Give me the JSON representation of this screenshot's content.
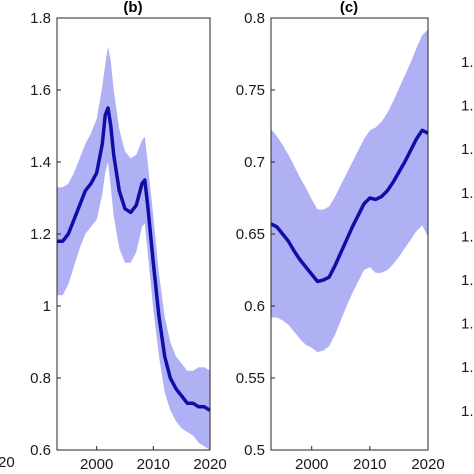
{
  "chart_data": [
    {
      "type": "line",
      "panel": "a",
      "title": "",
      "xlabel": "",
      "ylabel": "",
      "xlim": [
        1993,
        2020
      ],
      "x_ticks_visible": [
        "20"
      ],
      "y_ticks": [],
      "series": [],
      "visible": "edge only"
    },
    {
      "type": "line",
      "panel": "b",
      "title": "(b)",
      "xlabel": "",
      "ylabel": "",
      "xlim": [
        1993,
        2020
      ],
      "ylim": [
        0.6,
        1.8
      ],
      "x_ticks": [
        2000,
        2010,
        2020
      ],
      "y_ticks": [
        0.6,
        0.8,
        1,
        1.2,
        1.4,
        1.6,
        1.8
      ],
      "grid": false,
      "colors": {
        "line": "#0f0fa8",
        "band": "#b0b0f5"
      },
      "series": [
        {
          "x": [
            1993,
            1994,
            1995,
            1996,
            1997,
            1998,
            1999,
            2000,
            2001,
            2001.5,
            2002,
            2002.5,
            2003,
            2004,
            2005,
            2006,
            2007,
            2008,
            2008.5,
            2009,
            2010,
            2011,
            2012,
            2013,
            2014,
            2015,
            2016,
            2017,
            2018,
            2019,
            2020
          ],
          "y": [
            1.18,
            1.18,
            1.2,
            1.24,
            1.28,
            1.32,
            1.34,
            1.37,
            1.45,
            1.53,
            1.55,
            1.5,
            1.42,
            1.32,
            1.27,
            1.26,
            1.28,
            1.34,
            1.35,
            1.28,
            1.12,
            0.97,
            0.86,
            0.8,
            0.77,
            0.75,
            0.73,
            0.73,
            0.72,
            0.72,
            0.71
          ],
          "upper": [
            1.33,
            1.33,
            1.34,
            1.37,
            1.41,
            1.45,
            1.48,
            1.52,
            1.61,
            1.67,
            1.72,
            1.68,
            1.6,
            1.49,
            1.43,
            1.41,
            1.42,
            1.46,
            1.47,
            1.4,
            1.25,
            1.09,
            0.97,
            0.9,
            0.86,
            0.84,
            0.82,
            0.82,
            0.83,
            0.83,
            0.82
          ],
          "lower": [
            1.03,
            1.03,
            1.06,
            1.11,
            1.16,
            1.2,
            1.22,
            1.24,
            1.31,
            1.37,
            1.4,
            1.33,
            1.25,
            1.16,
            1.12,
            1.12,
            1.15,
            1.22,
            1.23,
            1.15,
            0.99,
            0.86,
            0.76,
            0.71,
            0.68,
            0.66,
            0.65,
            0.64,
            0.62,
            0.61,
            0.6
          ]
        }
      ]
    },
    {
      "type": "line",
      "panel": "c",
      "title": "(c)",
      "xlabel": "",
      "ylabel": "",
      "xlim": [
        1993,
        2020
      ],
      "ylim": [
        0.5,
        0.8
      ],
      "x_ticks": [
        2000,
        2010,
        2020
      ],
      "y_ticks": [
        0.5,
        0.55,
        0.6,
        0.65,
        0.7,
        0.75,
        0.8
      ],
      "grid": false,
      "colors": {
        "line": "#0f0fa8",
        "band": "#b0b0f5"
      },
      "series": [
        {
          "x": [
            1993,
            1994,
            1995,
            1996,
            1997,
            1998,
            1999,
            2000,
            2001,
            2002,
            2003,
            2004,
            2005,
            2006,
            2007,
            2008,
            2009,
            2010,
            2011,
            2012,
            2013,
            2014,
            2015,
            2016,
            2017,
            2018,
            2019,
            2020
          ],
          "y": [
            0.657,
            0.655,
            0.65,
            0.645,
            0.638,
            0.632,
            0.627,
            0.622,
            0.617,
            0.618,
            0.62,
            0.628,
            0.637,
            0.646,
            0.655,
            0.663,
            0.671,
            0.675,
            0.674,
            0.676,
            0.68,
            0.686,
            0.693,
            0.7,
            0.708,
            0.716,
            0.722,
            0.72
          ],
          "upper": [
            0.723,
            0.718,
            0.712,
            0.705,
            0.697,
            0.689,
            0.682,
            0.674,
            0.667,
            0.667,
            0.669,
            0.676,
            0.684,
            0.692,
            0.7,
            0.708,
            0.716,
            0.722,
            0.724,
            0.728,
            0.734,
            0.742,
            0.751,
            0.76,
            0.769,
            0.779,
            0.788,
            0.792
          ],
          "lower": [
            0.592,
            0.592,
            0.59,
            0.587,
            0.582,
            0.577,
            0.573,
            0.571,
            0.568,
            0.569,
            0.572,
            0.58,
            0.59,
            0.6,
            0.609,
            0.617,
            0.625,
            0.627,
            0.623,
            0.623,
            0.625,
            0.629,
            0.634,
            0.64,
            0.646,
            0.652,
            0.656,
            0.648
          ]
        }
      ]
    },
    {
      "type": "line",
      "panel": "d",
      "title": "",
      "y_ticks_visible_partial": [
        "1.",
        "1.",
        "1.",
        "1.",
        "1.",
        "1.",
        "1.",
        "1.",
        "1."
      ],
      "series": [],
      "visible": "edge only"
    }
  ],
  "colors": {
    "axis": "#262626",
    "line": "#0f0fa8",
    "band": "#b0b0f5"
  }
}
